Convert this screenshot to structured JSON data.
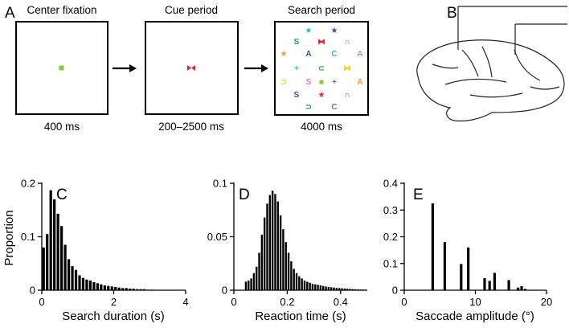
{
  "panels": {
    "A": "A",
    "B": "B",
    "C": "C",
    "D": "D",
    "E": "E"
  },
  "trial": {
    "screens": [
      {
        "title": "Center fixation",
        "duration": "400 ms"
      },
      {
        "title": "Cue period",
        "duration": "200–2500 ms"
      },
      {
        "title": "Search period",
        "duration": "4000 ms"
      }
    ],
    "fixation_color": "#8cc63f",
    "cue_color": "#e8222a"
  },
  "search_items": [
    {
      "glyph": "★",
      "color": "#29b6d6"
    },
    {
      "glyph": "★",
      "color": "#3a4fa8"
    },
    {
      "glyph": "S",
      "color": "#1ea04a"
    },
    {
      "glyph": "⧓",
      "color": "#e8222a"
    },
    {
      "glyph": "∩",
      "color": "#8e5aa8"
    },
    {
      "glyph": "★",
      "color": "#f39a2c"
    },
    {
      "glyph": "A",
      "color": "#3a4fa8"
    },
    {
      "glyph": "C",
      "color": "#29b6d6"
    },
    {
      "glyph": "A",
      "color": "#c08ac8"
    },
    {
      "glyph": "+",
      "color": "#29b6d6"
    },
    {
      "glyph": "⊂",
      "color": "#1ea04a"
    },
    {
      "glyph": "⧓",
      "color": "#f2d21e"
    },
    {
      "glyph": "⊃",
      "color": "#f2d21e"
    },
    {
      "glyph": "S",
      "color": "#e479b0"
    },
    {
      "glyph": "■",
      "color": "#8cc63f"
    },
    {
      "glyph": "+",
      "color": "#8e5aa8"
    },
    {
      "glyph": "A",
      "color": "#f39a2c"
    },
    {
      "glyph": "S",
      "color": "#3a4fa8"
    },
    {
      "glyph": "★",
      "color": "#e8222a"
    },
    {
      "glyph": "∩",
      "color": "#3a4fa8"
    },
    {
      "glyph": "⊃",
      "color": "#1ea04a"
    },
    {
      "glyph": "C",
      "color": "#7a6ab8"
    }
  ],
  "chart_data": [
    {
      "panel": "C",
      "type": "bar",
      "xlabel": "Search duration (s)",
      "ylabel": "Proportion",
      "xlim": [
        0,
        4
      ],
      "ylim": [
        0,
        0.2
      ],
      "xticks": [
        "0",
        "2",
        "4"
      ],
      "yticks": [
        "0",
        "0.1",
        "0.2"
      ],
      "bin_width": 0.1,
      "x": [
        0.05,
        0.15,
        0.25,
        0.35,
        0.45,
        0.55,
        0.65,
        0.75,
        0.85,
        0.95,
        1.05,
        1.15,
        1.25,
        1.35,
        1.45,
        1.55,
        1.65,
        1.75,
        1.85,
        1.95,
        2.05,
        2.15,
        2.25,
        2.35,
        2.45,
        2.55,
        2.65,
        2.75,
        2.85,
        2.95,
        3.05
      ],
      "values": [
        0.08,
        0.105,
        0.187,
        0.17,
        0.143,
        0.12,
        0.085,
        0.058,
        0.045,
        0.038,
        0.028,
        0.023,
        0.02,
        0.018,
        0.015,
        0.013,
        0.011,
        0.009,
        0.008,
        0.007,
        0.006,
        0.005,
        0.004,
        0.004,
        0.003,
        0.003,
        0.002,
        0.002,
        0.002,
        0.001,
        0.001
      ]
    },
    {
      "panel": "D",
      "type": "bar",
      "xlabel": "Reaction time (s)",
      "ylabel": "",
      "xlim": [
        0,
        0.5
      ],
      "ylim": [
        0,
        0.1
      ],
      "xticks": [
        "0",
        "0.2",
        "0.4"
      ],
      "yticks": [
        "0",
        "0.05",
        "0.1"
      ],
      "bin_width": 0.01,
      "x": [
        0.045,
        0.055,
        0.065,
        0.075,
        0.085,
        0.095,
        0.105,
        0.115,
        0.125,
        0.135,
        0.145,
        0.155,
        0.165,
        0.175,
        0.185,
        0.195,
        0.205,
        0.215,
        0.225,
        0.235,
        0.245,
        0.255,
        0.265,
        0.275,
        0.285,
        0.295,
        0.305,
        0.315,
        0.325,
        0.335,
        0.345,
        0.355,
        0.365,
        0.375,
        0.385,
        0.395,
        0.405,
        0.415,
        0.425,
        0.435,
        0.445,
        0.455,
        0.465,
        0.475,
        0.485,
        0.495
      ],
      "values": [
        0.008,
        0.009,
        0.011,
        0.016,
        0.022,
        0.035,
        0.052,
        0.068,
        0.081,
        0.089,
        0.093,
        0.09,
        0.083,
        0.07,
        0.057,
        0.045,
        0.035,
        0.027,
        0.02,
        0.016,
        0.013,
        0.011,
        0.009,
        0.008,
        0.007,
        0.006,
        0.0055,
        0.005,
        0.0045,
        0.004,
        0.0035,
        0.003,
        0.0028,
        0.0025,
        0.0022,
        0.002,
        0.0018,
        0.0016,
        0.0014,
        0.0012,
        0.001,
        0.0009,
        0.0008,
        0.0007,
        0.0006,
        0.0005
      ]
    },
    {
      "panel": "E",
      "type": "bar",
      "xlabel": "Saccade amplitude (°)",
      "ylabel": "",
      "xlim": [
        0,
        20
      ],
      "ylim": [
        0,
        0.4
      ],
      "xticks": [
        "0",
        "10",
        "20"
      ],
      "yticks": [
        "0",
        "0.1",
        "0.2",
        "0.3",
        "0.4"
      ],
      "x": [
        4.0,
        5.7,
        8.0,
        9.0,
        11.3,
        12.0,
        12.7,
        14.7,
        16.0,
        16.5,
        17.0
      ],
      "values": [
        0.325,
        0.18,
        0.098,
        0.16,
        0.045,
        0.035,
        0.065,
        0.038,
        0.01,
        0.015,
        0.005
      ]
    }
  ]
}
